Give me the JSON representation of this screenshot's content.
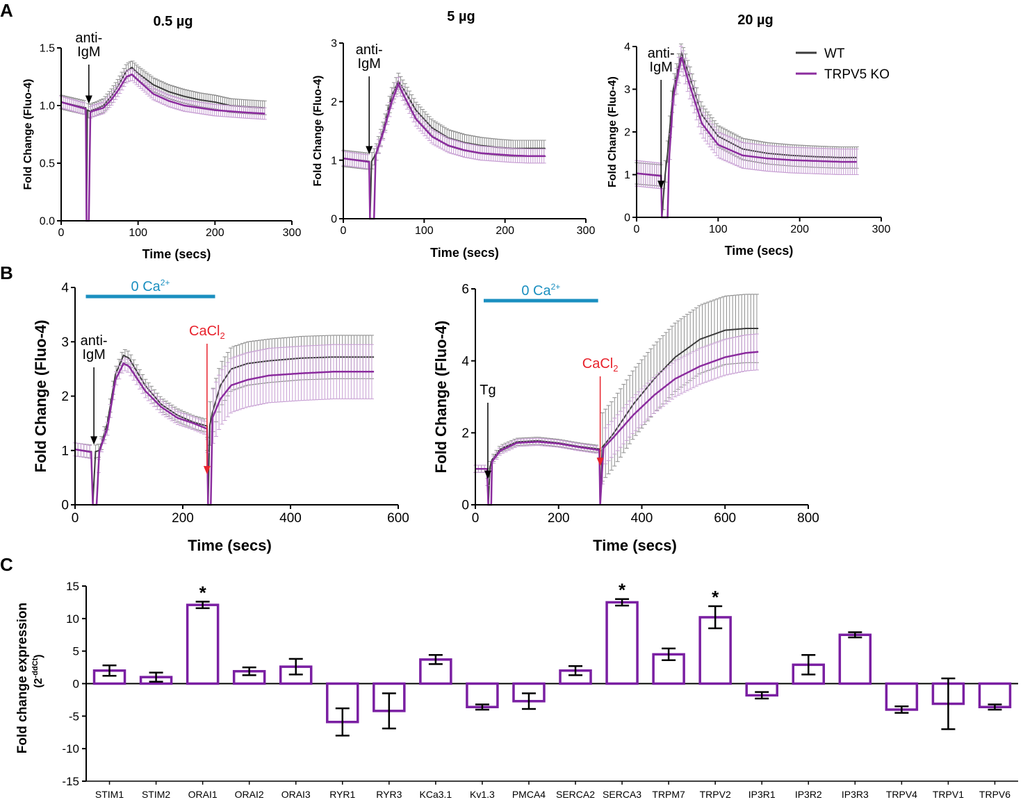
{
  "colors": {
    "wt": "#3c3c3c",
    "wt_band": "#8e8e8e",
    "ko": "#8b2c9e",
    "ko_band": "#c79fd3",
    "zero_ca_bar": "#1a8fc0",
    "cacl2": "#e8222c",
    "bar_outline": "#7a1fa2",
    "text": "#000000"
  },
  "panel_letters": [
    "A",
    "B",
    "C"
  ],
  "legend": {
    "wt": "WT",
    "ko": "TRPV5 KO"
  },
  "chart_data": [
    {
      "id": "A1",
      "type": "line",
      "title": "0.5 µg",
      "xlabel": "Time (secs)",
      "ylabel": "Fold Change (Fluo-4)",
      "xlim": [
        0,
        300
      ],
      "ylim": [
        0,
        1.5
      ],
      "xticks": [
        0,
        100,
        200,
        300
      ],
      "xticklabels": [
        "0",
        "100",
        "200",
        "300"
      ],
      "yticks": [
        0,
        0.5,
        1.0,
        1.5
      ],
      "yticklabels": [
        "0.0",
        "0.5",
        "1.0",
        "1.5"
      ],
      "annotations": [
        {
          "text": [
            "anti-",
            "IgM"
          ],
          "x": 36,
          "color": "#000000"
        }
      ],
      "series": [
        {
          "name": "WT",
          "x_end": 265,
          "x": [
            0,
            32,
            33,
            34,
            38,
            40,
            45,
            55,
            65,
            75,
            85,
            92,
            100,
            120,
            140,
            160,
            180,
            200,
            220,
            240,
            265
          ],
          "y": [
            1.03,
            0.98,
            0.0,
            0.96,
            0.95,
            0.96,
            0.97,
            1.0,
            1.08,
            1.18,
            1.3,
            1.33,
            1.28,
            1.18,
            1.12,
            1.08,
            1.05,
            1.03,
            1.0,
            0.99,
            0.98
          ],
          "err": 0.06
        },
        {
          "name": "TRPV5 KO",
          "x_end": 265,
          "x": [
            0,
            32,
            33,
            36,
            38,
            40,
            45,
            55,
            65,
            75,
            85,
            92,
            100,
            120,
            140,
            160,
            180,
            200,
            220,
            240,
            265
          ],
          "y": [
            1.03,
            0.97,
            0.0,
            0.0,
            0.94,
            0.95,
            0.96,
            0.98,
            1.05,
            1.14,
            1.25,
            1.27,
            1.22,
            1.1,
            1.04,
            1.0,
            0.98,
            0.96,
            0.95,
            0.94,
            0.93
          ],
          "err": 0.05
        }
      ]
    },
    {
      "id": "A2",
      "type": "line",
      "title": "5 µg",
      "xlabel": "Time (secs)",
      "ylabel": "Fold Change (Fluo-4)",
      "xlim": [
        0,
        300
      ],
      "ylim": [
        0,
        3
      ],
      "xticks": [
        0,
        100,
        200,
        300
      ],
      "xticklabels": [
        "0",
        "100",
        "200",
        "300"
      ],
      "yticks": [
        0,
        1,
        2,
        3
      ],
      "yticklabels": [
        "0",
        "1",
        "2",
        "3"
      ],
      "annotations": [
        {
          "text": [
            "anti-",
            "IgM"
          ],
          "x": 32,
          "color": "#000000"
        }
      ],
      "series": [
        {
          "name": "WT",
          "x_end": 250,
          "x": [
            0,
            32,
            33,
            35,
            40,
            50,
            60,
            68,
            75,
            90,
            110,
            130,
            150,
            170,
            190,
            210,
            230,
            250
          ],
          "y": [
            1.03,
            0.98,
            0.0,
            0.98,
            1.1,
            1.55,
            2.1,
            2.35,
            2.2,
            1.85,
            1.55,
            1.38,
            1.3,
            1.25,
            1.22,
            1.2,
            1.2,
            1.2
          ],
          "err": 0.14
        },
        {
          "name": "TRPV5 KO",
          "x_end": 250,
          "x": [
            0,
            32,
            33,
            38,
            40,
            50,
            60,
            68,
            75,
            90,
            110,
            130,
            150,
            170,
            190,
            210,
            230,
            250
          ],
          "y": [
            1.03,
            0.97,
            0.0,
            0.0,
            1.08,
            1.5,
            2.0,
            2.3,
            2.1,
            1.7,
            1.4,
            1.25,
            1.17,
            1.12,
            1.1,
            1.08,
            1.07,
            1.07
          ],
          "err": 0.12
        }
      ]
    },
    {
      "id": "A3",
      "type": "line",
      "title": "20 µg",
      "xlabel": "Time (secs)",
      "ylabel": "Fold Change (Fluo-4)",
      "xlim": [
        0,
        300
      ],
      "ylim": [
        0,
        4
      ],
      "xticks": [
        0,
        100,
        200,
        300
      ],
      "xticklabels": [
        "0",
        "100",
        "200",
        "300"
      ],
      "yticks": [
        0,
        1,
        2,
        3,
        4
      ],
      "yticklabels": [
        "0",
        "1",
        "2",
        "3",
        "4"
      ],
      "annotations": [
        {
          "text": [
            "anti-",
            "IgM"
          ],
          "x": 30,
          "color": "#000000"
        }
      ],
      "series": [
        {
          "name": "WT",
          "x_end": 270,
          "x": [
            0,
            30,
            31,
            35,
            38,
            45,
            55,
            65,
            80,
            100,
            130,
            160,
            190,
            220,
            250,
            270
          ],
          "y": [
            1.03,
            0.98,
            0.0,
            1.0,
            1.5,
            3.0,
            3.85,
            3.3,
            2.4,
            1.9,
            1.6,
            1.5,
            1.45,
            1.42,
            1.4,
            1.4
          ],
          "err": 0.25
        },
        {
          "name": "TRPV5 KO",
          "x_end": 270,
          "x": [
            0,
            30,
            31,
            38,
            40,
            45,
            55,
            65,
            80,
            100,
            130,
            160,
            190,
            220,
            250,
            270
          ],
          "y": [
            1.03,
            0.97,
            0.0,
            0.0,
            1.4,
            2.8,
            3.75,
            3.1,
            2.2,
            1.7,
            1.45,
            1.38,
            1.34,
            1.32,
            1.3,
            1.3
          ],
          "err": 0.3
        }
      ]
    },
    {
      "id": "B1",
      "type": "line",
      "xlabel": "Time (secs)",
      "ylabel": "Fold Change (Fluo-4)",
      "xlim": [
        0,
        600
      ],
      "ylim": [
        0,
        4
      ],
      "xticks": [
        0,
        200,
        400,
        600
      ],
      "xticklabels": [
        "0",
        "200",
        "400",
        "600"
      ],
      "yticks": [
        0,
        1,
        2,
        3,
        4
      ],
      "yticklabels": [
        "0",
        "1",
        "2",
        "3",
        "4"
      ],
      "bar_label": "0 Ca",
      "bar_label_sup": "2+",
      "bar_range": [
        20,
        260
      ],
      "annotations": [
        {
          "text": [
            "anti-",
            "IgM"
          ],
          "x": 35,
          "color": "#000000"
        },
        {
          "text": [
            "CaCl"
          ],
          "sub": "2",
          "x": 245,
          "color": "#e8222c"
        }
      ],
      "series": [
        {
          "name": "WT",
          "x_end": 555,
          "x": [
            0,
            30,
            33,
            38,
            45,
            60,
            75,
            90,
            100,
            130,
            160,
            190,
            220,
            245,
            247,
            250,
            255,
            270,
            290,
            320,
            360,
            420,
            480,
            555
          ],
          "y": [
            1.02,
            0.98,
            0.0,
            0.98,
            1.0,
            1.5,
            2.4,
            2.75,
            2.7,
            2.2,
            1.85,
            1.65,
            1.52,
            1.45,
            0.0,
            1.45,
            1.7,
            2.2,
            2.5,
            2.6,
            2.65,
            2.7,
            2.72,
            2.72
          ],
          "err_small": 0.12,
          "err_large": 0.4,
          "err_switch": 250
        },
        {
          "name": "TRPV5 KO",
          "x_end": 555,
          "x": [
            0,
            30,
            33,
            40,
            45,
            60,
            75,
            90,
            100,
            130,
            160,
            190,
            220,
            245,
            247,
            252,
            255,
            270,
            290,
            320,
            360,
            420,
            480,
            555
          ],
          "y": [
            1.02,
            0.97,
            0.0,
            0.0,
            0.98,
            1.4,
            2.3,
            2.6,
            2.55,
            2.1,
            1.8,
            1.6,
            1.5,
            1.4,
            0.0,
            0.0,
            1.6,
            1.95,
            2.2,
            2.3,
            2.38,
            2.42,
            2.45,
            2.45
          ],
          "err_small": 0.12,
          "err_large": 0.5,
          "err_switch": 250
        }
      ]
    },
    {
      "id": "B2",
      "type": "line",
      "xlabel": "Time (secs)",
      "ylabel": "Fold Change (Fluo-4)",
      "xlim": [
        0,
        800
      ],
      "ylim": [
        0,
        6
      ],
      "xticks": [
        0,
        200,
        400,
        600,
        800
      ],
      "xticklabels": [
        "0",
        "200",
        "400",
        "600",
        "800"
      ],
      "yticks": [
        0,
        2,
        4,
        6
      ],
      "yticklabels": [
        "0",
        "2",
        "4",
        "6"
      ],
      "bar_label": "0 Ca",
      "bar_label_sup": "2+",
      "bar_range": [
        20,
        295
      ],
      "annotations": [
        {
          "text": [
            "Tg"
          ],
          "x": 30,
          "color": "#000000"
        },
        {
          "text": [
            "CaCl"
          ],
          "sub": "2",
          "x": 300,
          "color": "#e8222c"
        }
      ],
      "series": [
        {
          "name": "WT",
          "x_end": 680,
          "x": [
            0,
            28,
            31,
            35,
            40,
            60,
            100,
            150,
            200,
            250,
            298,
            300,
            305,
            330,
            380,
            430,
            480,
            540,
            600,
            650,
            680
          ],
          "y": [
            1.0,
            1.0,
            0.0,
            1.05,
            1.25,
            1.55,
            1.75,
            1.78,
            1.72,
            1.62,
            1.55,
            0.0,
            1.6,
            1.95,
            2.8,
            3.5,
            4.1,
            4.6,
            4.85,
            4.9,
            4.9
          ],
          "err_small": 0.1,
          "err_large": 0.95,
          "err_switch": 305
        },
        {
          "name": "TRPV5 KO",
          "x_end": 680,
          "x": [
            0,
            28,
            31,
            38,
            40,
            60,
            100,
            150,
            200,
            250,
            298,
            300,
            308,
            330,
            380,
            430,
            480,
            540,
            600,
            650,
            680
          ],
          "y": [
            1.0,
            1.0,
            0.0,
            0.0,
            1.2,
            1.5,
            1.72,
            1.75,
            1.7,
            1.6,
            1.52,
            0.0,
            1.58,
            1.85,
            2.5,
            3.05,
            3.5,
            3.85,
            4.1,
            4.22,
            4.25
          ],
          "err_small": 0.1,
          "err_large": 0.5,
          "err_switch": 305
        }
      ]
    },
    {
      "id": "C",
      "type": "bar",
      "ylabel": "Fold change expression",
      "ylabel2": "(2",
      "ylabel2_sup": "-ddCt",
      "ylabel2_end": ")",
      "ylim": [
        -15,
        15
      ],
      "yticks": [
        -15,
        -10,
        -5,
        0,
        5,
        10,
        15
      ],
      "yticklabels": [
        "-15",
        "-10",
        "-5",
        "0",
        "5",
        "10",
        "15"
      ],
      "categories": [
        "STIM1",
        "STIM2",
        "ORAI1",
        "ORAI2",
        "ORAI3",
        "RYR1",
        "RYR3",
        "KCa3.1",
        "Kv1.3",
        "PMCA4",
        "SERCA2",
        "SERCA3",
        "TRPM7",
        "TRPV2",
        "IP3R1",
        "IP3R2",
        "IP3R3",
        "TRPV4",
        "TRPV1",
        "TRPV6"
      ],
      "values": [
        2.0,
        1.0,
        12.1,
        1.9,
        2.6,
        -5.9,
        -4.2,
        3.7,
        -3.6,
        -2.7,
        2.0,
        12.5,
        4.5,
        10.2,
        -1.8,
        2.9,
        7.5,
        -4.0,
        -3.1,
        -3.6
      ],
      "errors": [
        0.8,
        0.7,
        0.5,
        0.6,
        1.2,
        2.1,
        2.7,
        0.7,
        0.4,
        1.2,
        0.7,
        0.5,
        0.9,
        1.7,
        0.5,
        1.5,
        0.4,
        0.5,
        3.9,
        0.4
      ],
      "significant": [
        "ORAI1",
        "SERCA3",
        "TRPV2"
      ],
      "significance_mark": "*"
    }
  ]
}
